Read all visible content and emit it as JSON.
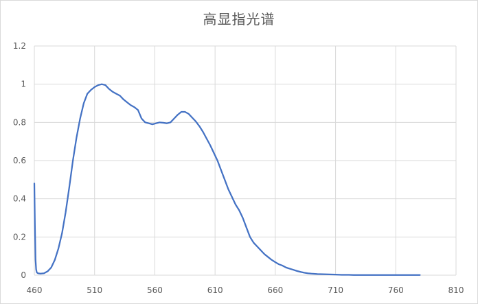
{
  "chart_data": {
    "type": "line",
    "title": "高显指光谱",
    "xlabel": "",
    "ylabel": "",
    "xlim": [
      460,
      810
    ],
    "ylim": [
      0,
      1.2
    ],
    "x_ticks": [
      "460",
      "510",
      "560",
      "610",
      "660",
      "710",
      "760",
      "810"
    ],
    "y_ticks": [
      "0",
      "0.2",
      "0.4",
      "0.6",
      "0.8",
      "1",
      "1.2"
    ],
    "grid": true,
    "legend": "none",
    "series": [
      {
        "color": "#4472c4",
        "x": [
          460,
          460.5,
          461,
          461.5,
          462,
          463,
          465,
          468,
          471,
          474,
          477,
          480,
          483,
          486,
          489,
          492,
          495,
          498,
          501,
          504,
          507,
          510,
          513,
          516,
          519,
          522,
          525,
          528,
          531,
          534,
          537,
          540,
          543,
          546,
          549,
          552,
          555,
          558,
          561,
          564,
          567,
          570,
          573,
          576,
          579,
          582,
          585,
          588,
          591,
          594,
          597,
          600,
          603,
          606,
          609,
          612,
          615,
          618,
          621,
          624,
          627,
          630,
          633,
          636,
          639,
          642,
          645,
          648,
          651,
          654,
          657,
          660,
          663,
          666,
          669,
          672,
          675,
          678,
          681,
          684,
          687,
          690,
          695,
          700,
          705,
          710,
          715,
          720,
          725,
          730,
          735,
          740,
          745,
          750,
          755,
          760,
          765,
          770,
          775,
          780
        ],
        "y": [
          0.48,
          0.25,
          0.08,
          0.03,
          0.015,
          0.01,
          0.008,
          0.01,
          0.02,
          0.04,
          0.08,
          0.14,
          0.22,
          0.33,
          0.46,
          0.6,
          0.72,
          0.82,
          0.9,
          0.95,
          0.97,
          0.985,
          0.995,
          1.0,
          0.995,
          0.975,
          0.96,
          0.95,
          0.94,
          0.92,
          0.905,
          0.89,
          0.88,
          0.865,
          0.82,
          0.8,
          0.795,
          0.79,
          0.795,
          0.8,
          0.798,
          0.795,
          0.8,
          0.82,
          0.84,
          0.855,
          0.855,
          0.845,
          0.825,
          0.805,
          0.78,
          0.75,
          0.715,
          0.68,
          0.64,
          0.6,
          0.55,
          0.5,
          0.45,
          0.41,
          0.37,
          0.34,
          0.3,
          0.25,
          0.2,
          0.17,
          0.15,
          0.13,
          0.11,
          0.095,
          0.08,
          0.068,
          0.057,
          0.05,
          0.04,
          0.034,
          0.028,
          0.022,
          0.017,
          0.013,
          0.01,
          0.008,
          0.006,
          0.005,
          0.004,
          0.003,
          0.002,
          0.002,
          0.001,
          0.001,
          0.001,
          0.001,
          0.001,
          0.001,
          0.001,
          0.001,
          0.001,
          0.001,
          0.001,
          0.001
        ]
      }
    ]
  }
}
